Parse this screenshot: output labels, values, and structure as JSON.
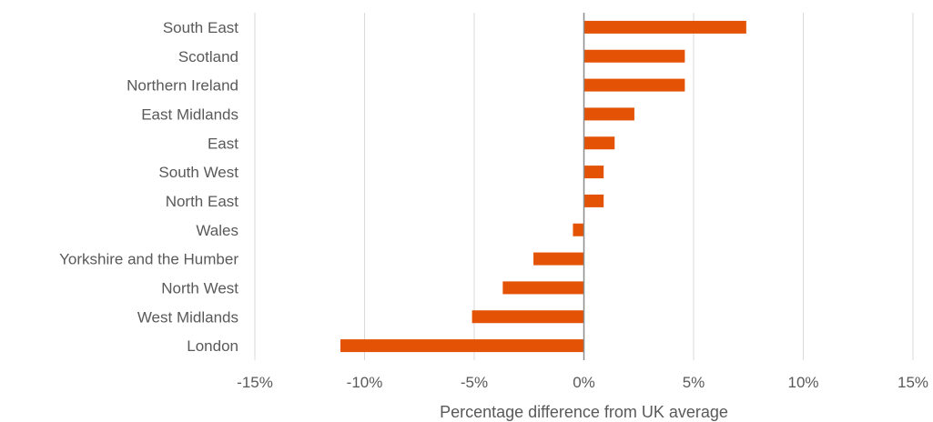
{
  "chart_data": {
    "type": "bar",
    "orientation": "horizontal",
    "categories": [
      "South East",
      "Scotland",
      "Northern Ireland",
      "East Midlands",
      "East",
      "South West",
      "North East",
      "Wales",
      "Yorkshire and the Humber",
      "North West",
      "West Midlands",
      "London"
    ],
    "values": [
      7.4,
      4.6,
      4.6,
      2.3,
      1.4,
      0.9,
      0.9,
      -0.5,
      -2.3,
      -3.7,
      -5.1,
      -11.1
    ],
    "xlim": [
      -15,
      15
    ],
    "xticks": [
      -15,
      -10,
      -5,
      0,
      5,
      10,
      15
    ],
    "xtick_labels": [
      "-15%",
      "-10%",
      "-5%",
      "0%",
      "5%",
      "10%",
      "15%"
    ],
    "xlabel": "Percentage difference from UK average",
    "ylabel": "",
    "title": "",
    "grid": "vertical",
    "legend": "none",
    "colors": {
      "bar": "#E35205",
      "grid": "#D9D9D9",
      "zero_axis": "#8C8C8C",
      "text": "#595959"
    }
  }
}
